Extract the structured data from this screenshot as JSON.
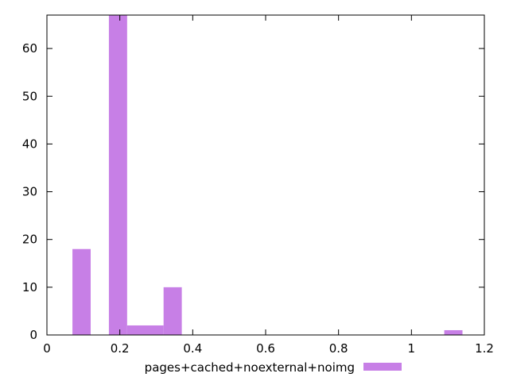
{
  "chart_data": {
    "type": "bar",
    "title": "",
    "xlabel": "",
    "ylabel": "",
    "xlim": [
      0,
      1.2
    ],
    "ylim": [
      0,
      67
    ],
    "x_ticks": [
      "0",
      "0.2",
      "0.4",
      "0.6",
      "0.8",
      "1",
      "1.2"
    ],
    "y_ticks": [
      "0",
      "10",
      "20",
      "30",
      "40",
      "50",
      "60"
    ],
    "grid": false,
    "legend_position": "bottom",
    "series": [
      {
        "name": "pages+cached+noexternal+noimg",
        "color": "#c77fe6",
        "bins": [
          {
            "x0": 0.07,
            "x1": 0.12,
            "value": 18
          },
          {
            "x0": 0.17,
            "x1": 0.22,
            "value": 67
          },
          {
            "x0": 0.22,
            "x1": 0.32,
            "value": 2
          },
          {
            "x0": 0.32,
            "x1": 0.37,
            "value": 10
          },
          {
            "x0": 1.09,
            "x1": 1.14,
            "value": 1
          }
        ]
      }
    ]
  }
}
